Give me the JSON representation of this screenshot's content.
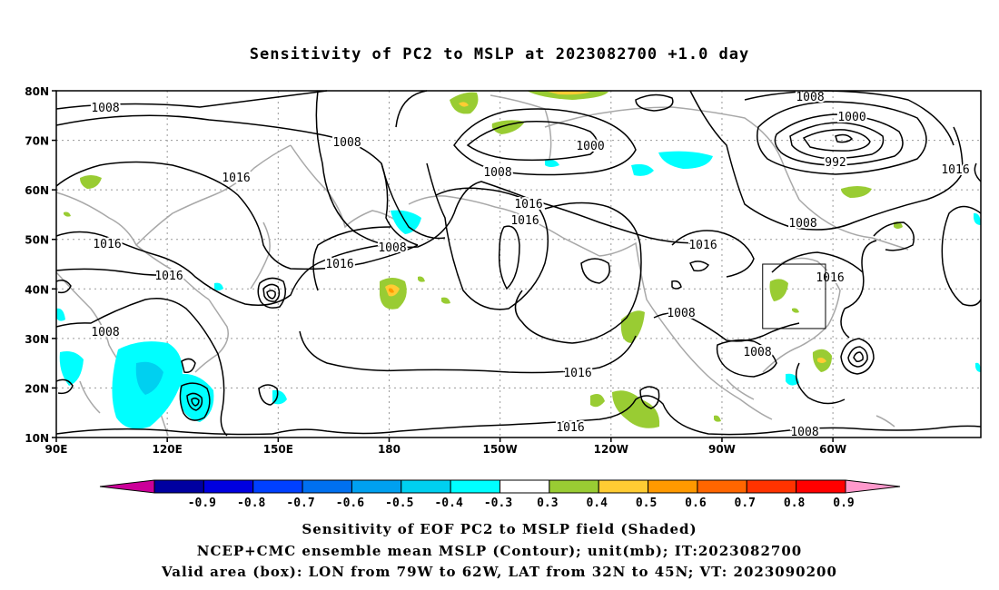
{
  "title": "Sensitivity of PC2 to MSLP at 2023082700 +1.0 day",
  "map": {
    "lat_labels": [
      "80N",
      "70N",
      "60N",
      "50N",
      "40N",
      "30N",
      "20N",
      "10N"
    ],
    "lon_labels": [
      "90E",
      "120E",
      "150E",
      "180",
      "150W",
      "120W",
      "90W",
      "60W"
    ],
    "contour_labels": [
      {
        "text": "1008"
      },
      {
        "text": "1008"
      },
      {
        "text": "1016"
      },
      {
        "text": "1016"
      },
      {
        "text": "1016"
      },
      {
        "text": "1008"
      },
      {
        "text": "1008"
      },
      {
        "text": "1016"
      },
      {
        "text": "1016"
      },
      {
        "text": "1008"
      },
      {
        "text": "1000"
      },
      {
        "text": "1016"
      },
      {
        "text": "1016"
      },
      {
        "text": "1016"
      },
      {
        "text": "1008"
      },
      {
        "text": "1008"
      },
      {
        "text": "1008"
      },
      {
        "text": "1008"
      },
      {
        "text": "1000"
      },
      {
        "text": "992"
      },
      {
        "text": "1008"
      },
      {
        "text": "1016"
      },
      {
        "text": "1016"
      },
      {
        "text": "1016"
      }
    ],
    "valid_box": {
      "lon_from": "79W",
      "lon_to": "62W",
      "lat_from": "32N",
      "lat_to": "45N"
    }
  },
  "colorbar": {
    "labels": [
      "-0.9",
      "-0.8",
      "-0.7",
      "-0.6",
      "-0.5",
      "-0.4",
      "-0.3",
      "0.3",
      "0.4",
      "0.5",
      "0.6",
      "0.7",
      "0.8",
      "0.9"
    ],
    "colors": [
      "#0000a0",
      "#0000e0",
      "#0040ff",
      "#0070f0",
      "#00a0f0",
      "#00d0f0",
      "#00ffff",
      "#ffffff",
      "#99cc33",
      "#ffcc33",
      "#ff9900",
      "#ff6600",
      "#ff3300",
      "#ff0000"
    ],
    "left_tip_color": "#cc0099",
    "right_tip_color": "#ff99cc"
  },
  "captions": {
    "line1": "Sensitivity of EOF PC2 to MSLP field (Shaded)",
    "line2": "NCEP+CMC ensemble mean MSLP (Contour); unit(mb); IT:2023082700",
    "line3": "Valid area (box): LON from 79W to 62W, LAT from 32N to 45N; VT: 2023090200"
  }
}
